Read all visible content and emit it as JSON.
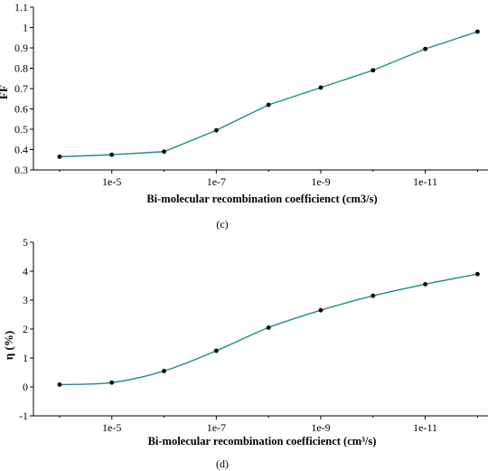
{
  "chart_data": [
    {
      "type": "line",
      "panel_label": "(c)",
      "x_ticks": [
        {
          "x": 5,
          "label": "1e-5"
        },
        {
          "x": 7,
          "label": "1e-7"
        },
        {
          "x": 9,
          "label": "1e-9"
        },
        {
          "x": 11,
          "label": "1e-11"
        }
      ],
      "xlim": [
        3.5,
        12.2
      ],
      "x_scale": "log (decreasing coefficient)",
      "xlabel": "Bi-molecular recombination coefficienct (cm3/s)",
      "ylabel": "FF",
      "ylim": [
        0.3,
        1.1
      ],
      "y_ticks": [
        "0.3",
        "0.4",
        "0.5",
        "0.6",
        "0.7",
        "0.8",
        "0.9",
        "1",
        "1.1"
      ],
      "series": [
        {
          "x": [
            4,
            5,
            6,
            7,
            8,
            9,
            10,
            11,
            12
          ],
          "values": [
            0.365,
            0.375,
            0.39,
            0.495,
            0.62,
            0.705,
            0.79,
            0.895,
            0.98
          ]
        }
      ],
      "smooth": false,
      "color": "#1f8a8a"
    },
    {
      "type": "line",
      "panel_label": "(d)",
      "x_ticks": [
        {
          "x": 5,
          "label": "1e-5"
        },
        {
          "x": 7,
          "label": "1e-7"
        },
        {
          "x": 9,
          "label": "1e-9"
        },
        {
          "x": 11,
          "label": "1e-11"
        }
      ],
      "xlim": [
        3.5,
        12.2
      ],
      "x_scale": "log (decreasing coefficient)",
      "xlabel": "Bi-molecular recombination coefficienct (cm³/s)",
      "ylabel": "η (%)",
      "ylim": [
        -1,
        5
      ],
      "y_ticks": [
        "-1",
        "0",
        "1",
        "2",
        "3",
        "4",
        "5"
      ],
      "series": [
        {
          "x": [
            4,
            5,
            6,
            7,
            8,
            9,
            10,
            11,
            12
          ],
          "values": [
            0.08,
            0.15,
            0.55,
            1.25,
            2.05,
            2.65,
            3.15,
            3.55,
            3.9
          ]
        }
      ],
      "smooth": true,
      "color": "#1f8a8a"
    }
  ]
}
